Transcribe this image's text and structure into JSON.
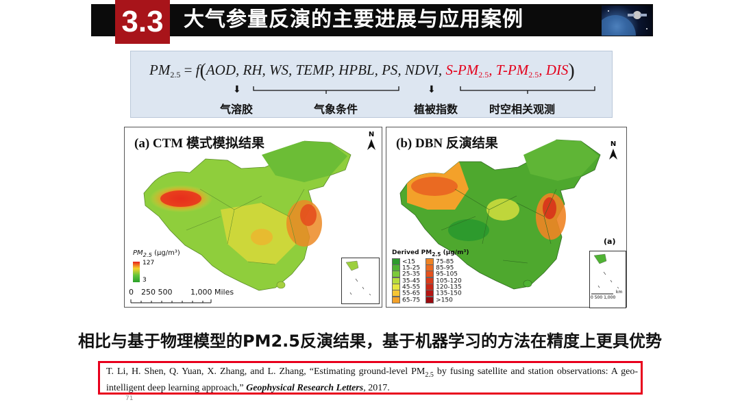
{
  "header": {
    "section_number": "3.3",
    "title": "大气参量反演的主要进展与应用案例",
    "decor_image": "satellite-space-image"
  },
  "formula": {
    "lhs_base": "PM",
    "lhs_sub": "2.5",
    "eq": " = ",
    "func": "f",
    "args_black": "AOD, RH, WS, TEMP, HPBL, PS, NDVI, ",
    "s_pm": "S-PM",
    "t_pm": "T-PM",
    "pm_sub": "2.5",
    "dis": "DIS",
    "groups": {
      "aerosol": "气溶胶",
      "meteorology": "气象条件",
      "vegetation": "植被指数",
      "spatiotemporal": "时空相关观测"
    }
  },
  "map_a": {
    "title": "(a) CTM 模式模拟结果",
    "north": "N",
    "legend_label": "PM2.5 (μg/m³)",
    "legend_max": "127",
    "legend_min": "3",
    "scale_labels": [
      "0",
      "250 500",
      "1,000 Miles"
    ]
  },
  "map_b": {
    "title": "(b) DBN 反演结果",
    "north": "N",
    "panel_tag": "(a)",
    "legend_title": "Derived PM2.5 (μg/m³)",
    "legend_left": [
      "<15",
      "15-25",
      "25-35",
      "35-45",
      "45-55",
      "55-65",
      "65-75"
    ],
    "legend_right": [
      "75-85",
      "85-95",
      "95-105",
      "105-120",
      "120-135",
      "135-150",
      ">150"
    ],
    "legend_left_colors": [
      "#2d9a2d",
      "#4fb233",
      "#7cc93a",
      "#b6dc3e",
      "#e6e640",
      "#f6c534",
      "#f3a12a"
    ],
    "legend_right_colors": [
      "#ef8425",
      "#ea6a22",
      "#e4521e",
      "#d83b1b",
      "#c82718",
      "#b41614",
      "#9a0b10"
    ],
    "inset_scale": "0  500 1,000",
    "inset_unit": "km"
  },
  "conclusion": "相比与基于物理模型的PM2.5反演结果，基于机器学习的方法在精度上更具优势",
  "reference": {
    "part1": "T. Li, H. Shen, Q. Yuan, X. Zhang, and L. Zhang, “Estimating ground-level PM",
    "sub": "2.5",
    "part2": " by fusing satellite and station observations: A geo-intelligent deep learning approach,” ",
    "journal": "Geophysical Research Letters",
    "year": ", 2017."
  },
  "page_number": "71"
}
